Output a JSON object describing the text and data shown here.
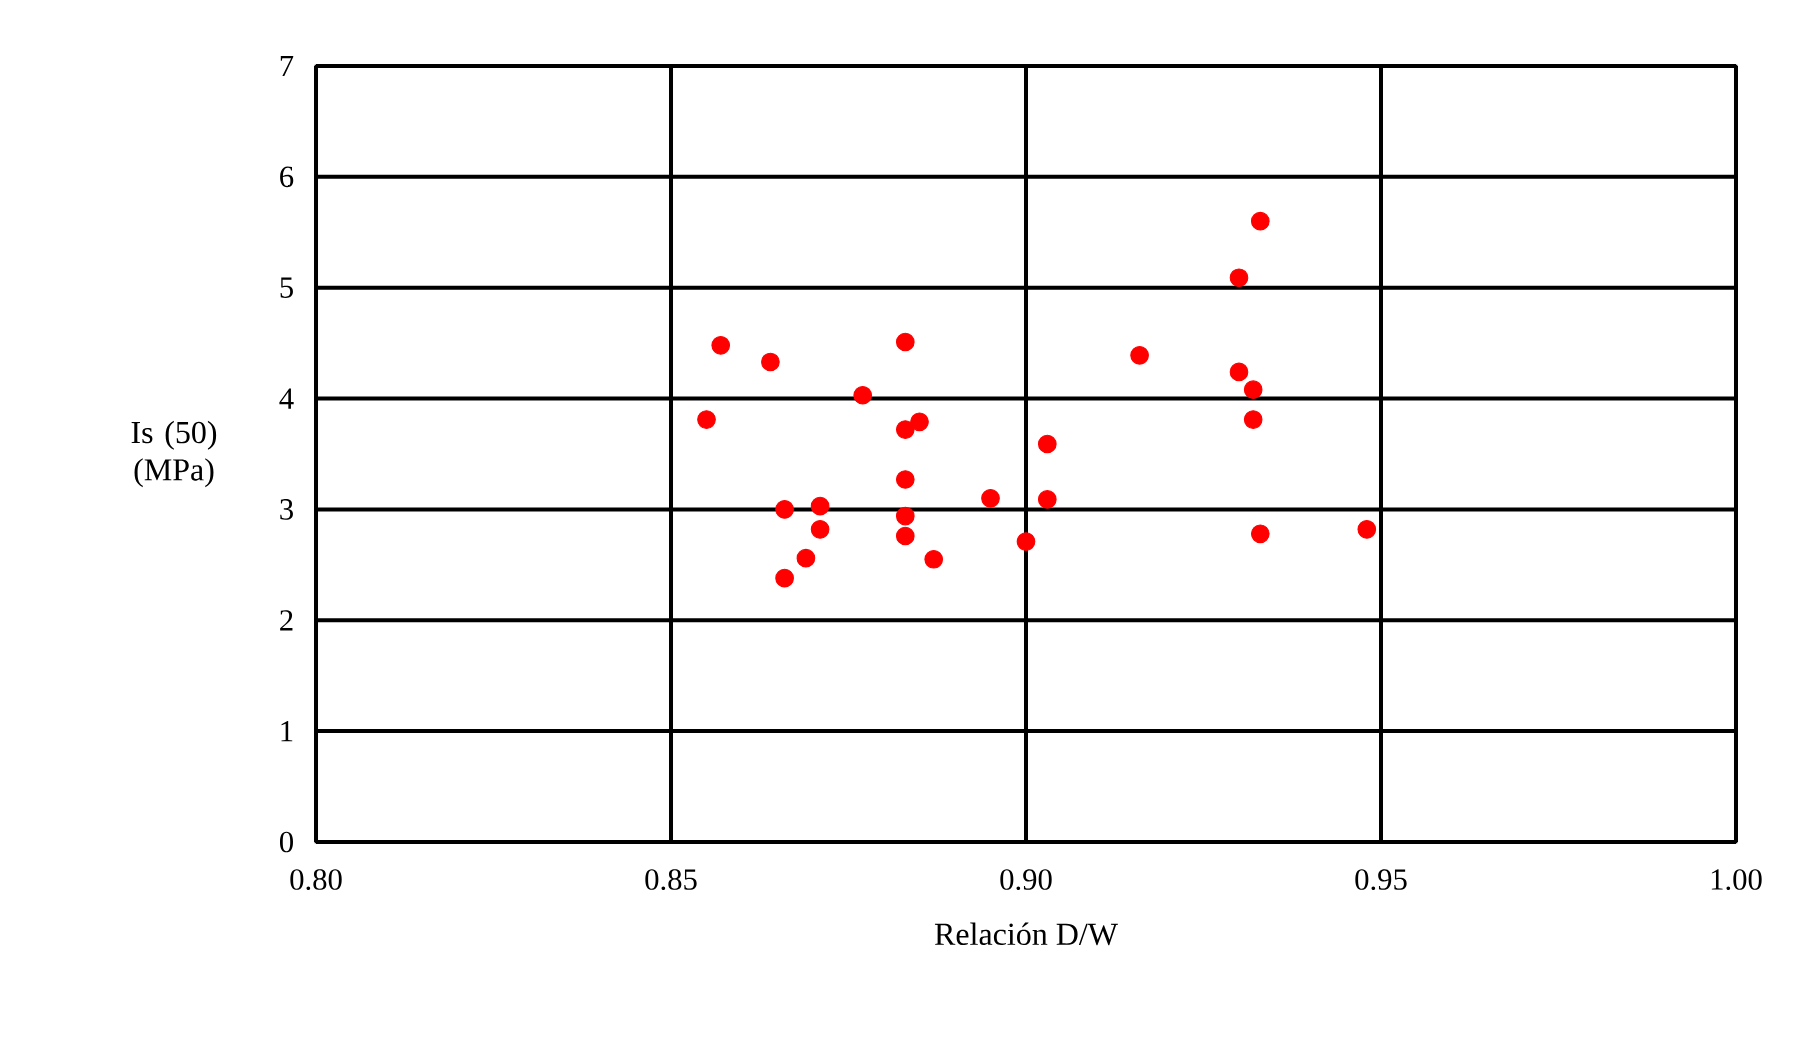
{
  "chart_data": {
    "type": "scatter",
    "xlabel": "Relación D/W",
    "ylabel": "Is (50)\n(MPa)",
    "x": [
      0.855,
      0.857,
      0.864,
      0.866,
      0.866,
      0.869,
      0.871,
      0.871,
      0.877,
      0.883,
      0.883,
      0.885,
      0.883,
      0.883,
      0.883,
      0.887,
      0.895,
      0.9,
      0.903,
      0.903,
      0.916,
      0.93,
      0.933,
      0.93,
      0.932,
      0.932,
      0.933,
      0.948
    ],
    "series": [
      {
        "color": "#ff0000",
        "values": [
          3.81,
          4.48,
          4.33,
          3.0,
          2.38,
          2.56,
          3.03,
          2.82,
          4.03,
          4.51,
          3.72,
          3.79,
          3.27,
          2.94,
          2.76,
          2.55,
          3.1,
          2.71,
          3.59,
          3.09,
          4.39,
          5.09,
          5.6,
          4.24,
          4.08,
          3.81,
          2.78,
          2.82
        ]
      }
    ],
    "xlim": [
      0.8,
      1.0
    ],
    "ylim": [
      0,
      7
    ],
    "xticks": [
      {
        "value": 0.8,
        "label": "0.80"
      },
      {
        "value": 0.85,
        "label": "0.85"
      },
      {
        "value": 0.9,
        "label": "0.90"
      },
      {
        "value": 0.95,
        "label": "0.95"
      },
      {
        "value": 1.0,
        "label": "1.00"
      }
    ],
    "yticks": [
      0,
      1,
      2,
      3,
      4,
      5,
      6,
      7
    ],
    "grid": true
  }
}
